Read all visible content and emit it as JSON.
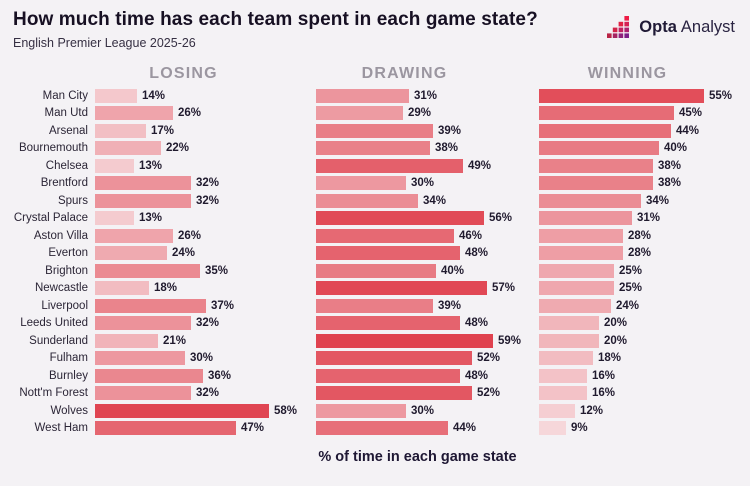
{
  "header": {
    "title": "How much time has each team spent in each game state?",
    "subtitle": "English Premier League 2025-26",
    "brand_bold": "Opta",
    "brand_light": "Analyst"
  },
  "chart_data": {
    "type": "bar",
    "orientation": "horizontal",
    "title": "How much time has each team spent in each game state?",
    "subtitle": "English Premier League 2025-26",
    "columns": [
      "LOSING",
      "DRAWING",
      "WINNING"
    ],
    "categories": [
      "Man City",
      "Man Utd",
      "Arsenal",
      "Bournemouth",
      "Chelsea",
      "Brentford",
      "Spurs",
      "Crystal Palace",
      "Aston Villa",
      "Everton",
      "Brighton",
      "Newcastle",
      "Liverpool",
      "Leeds United",
      "Sunderland",
      "Fulham",
      "Burnley",
      "Nott'm Forest",
      "Wolves",
      "West Ham"
    ],
    "series": [
      {
        "name": "LOSING",
        "values": [
          14,
          26,
          17,
          22,
          13,
          32,
          32,
          13,
          26,
          24,
          35,
          18,
          37,
          32,
          21,
          30,
          36,
          32,
          58,
          47
        ]
      },
      {
        "name": "DRAWING",
        "values": [
          31,
          29,
          39,
          38,
          49,
          30,
          34,
          56,
          46,
          48,
          40,
          57,
          39,
          48,
          59,
          52,
          48,
          52,
          30,
          44
        ]
      },
      {
        "name": "WINNING",
        "values": [
          55,
          45,
          44,
          40,
          38,
          38,
          34,
          31,
          28,
          28,
          25,
          25,
          24,
          20,
          20,
          18,
          16,
          16,
          12,
          9
        ]
      }
    ],
    "value_suffix": "%",
    "xlabel": "% of time in each game state",
    "xlim": [
      0,
      60
    ],
    "grid": false,
    "legend": false,
    "color_scale": {
      "min_value": 9,
      "max_value": 59,
      "min_color": "#f6d7da",
      "max_color": "#e0424f"
    }
  },
  "colors": {
    "background": "#f4f2f5",
    "title_text": "#171023",
    "column_header_text": "#9b96a0",
    "label_text": "#2b2536",
    "logo_squares": [
      "#b92446",
      "#d22347",
      "#a62360",
      "#e02245",
      "#c02261",
      "#8f217b",
      "#ee1c45",
      "#d62055",
      "#ad216e",
      "#7c2087"
    ]
  }
}
